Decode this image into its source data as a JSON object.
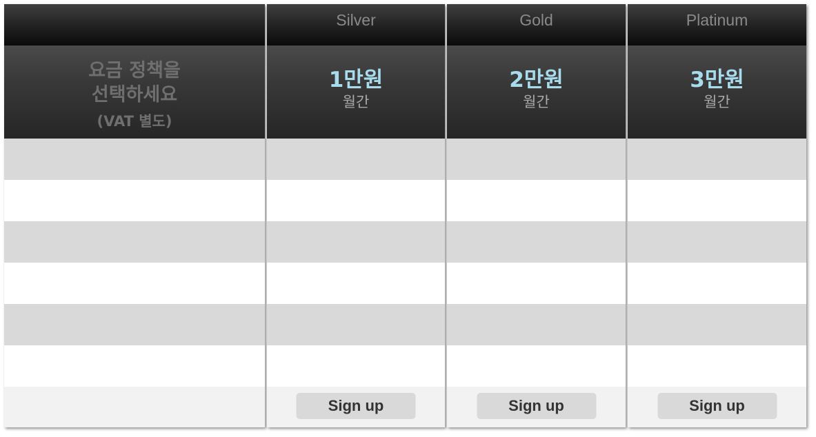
{
  "intro": {
    "line1": "요금 정책을",
    "line2": "선택하세요",
    "vat_note": "(VAT 별도)"
  },
  "plans": [
    {
      "name": "Silver",
      "price": "1만원",
      "period": "월간",
      "button": "Sign up"
    },
    {
      "name": "Gold",
      "price": "2만원",
      "period": "월간",
      "button": "Sign up"
    },
    {
      "name": "Platinum",
      "price": "3만원",
      "period": "월간",
      "button": "Sign up"
    }
  ],
  "colors": {
    "price_accent": "#a8dced",
    "header_dark": "#0a0a0a",
    "row_stripe": "#d9d9d9",
    "footer_bg": "#f2f2f2"
  }
}
